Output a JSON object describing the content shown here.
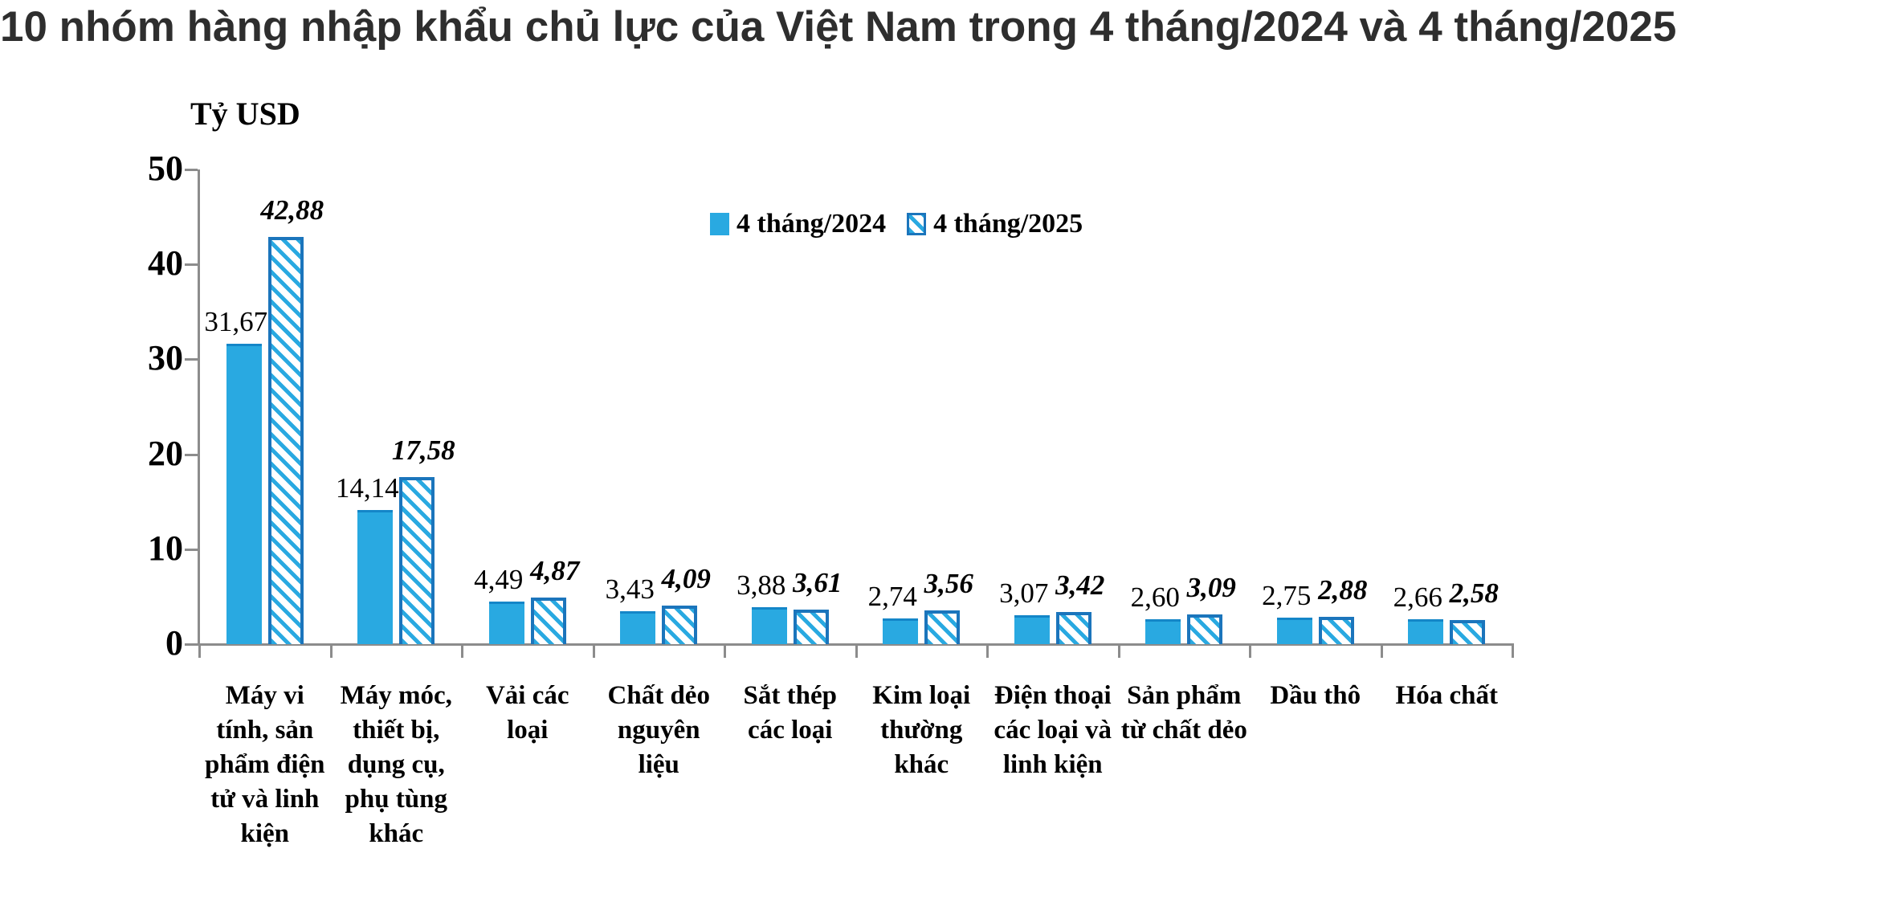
{
  "colors": {
    "bar_2024_fill": "#29a9e1",
    "bar_2024_edge": "#1486c8",
    "bar_2025_stripe": "#29a9e1",
    "bar_2025_border": "#1b75bc",
    "axis": "#8c8c8c",
    "title_text": "#2e2e2e"
  },
  "chart_data": {
    "type": "bar",
    "title": "10 nhóm hàng nhập khẩu chủ lực của Việt Nam trong 4 tháng/2024 và 4 tháng/2025",
    "ylabel": "Tỷ USD",
    "xlabel": "",
    "ylim": [
      0,
      50
    ],
    "y_ticks": [
      0,
      10,
      20,
      30,
      40,
      50
    ],
    "grid": false,
    "legend_position": "top-center",
    "categories": [
      "Máy vi tính, sản phẩm điện tử và linh kiện",
      "Máy móc, thiết bị, dụng cụ, phụ tùng khác",
      "Vải các loại",
      "Chất dẻo nguyên liệu",
      "Sắt thép các loại",
      "Kim loại thường khác",
      "Điện thoại các loại và linh kiện",
      "Sản phẩm từ chất dẻo",
      "Dầu thô",
      "Hóa chất"
    ],
    "series": [
      {
        "name": "4 tháng/2024",
        "values": [
          31.67,
          14.14,
          4.49,
          3.43,
          3.88,
          2.74,
          3.07,
          2.6,
          2.75,
          2.66
        ],
        "labels": [
          "31,67",
          "14,14",
          "4,49",
          "3,43",
          "3,88",
          "2,74",
          "3,07",
          "2,60",
          "2,75",
          "2,66"
        ],
        "style": "solid"
      },
      {
        "name": "4 tháng/2025",
        "values": [
          42.88,
          17.58,
          4.87,
          4.09,
          3.61,
          3.56,
          3.42,
          3.09,
          2.88,
          2.58
        ],
        "labels": [
          "42,88",
          "17,58",
          "4,87",
          "4,09",
          "3,61",
          "3,56",
          "3,42",
          "3,09",
          "2,88",
          "2,58"
        ],
        "style": "hatched"
      }
    ]
  }
}
